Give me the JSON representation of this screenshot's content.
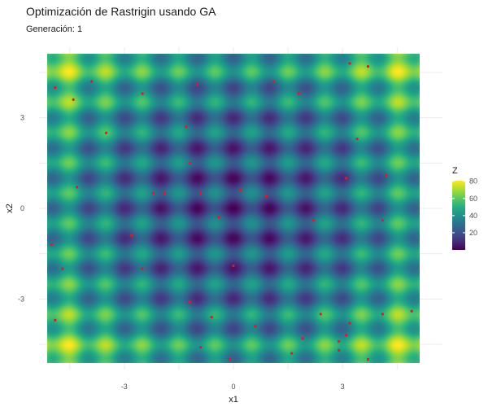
{
  "chart_data": {
    "type": "heatmap",
    "title": "Optimización de Rastrigin usando GA",
    "subtitle": "Generación: 1",
    "xlabel": "x1",
    "ylabel": "x2",
    "xlim": [
      -5.12,
      5.12
    ],
    "ylim": [
      -5.12,
      5.12
    ],
    "x_ticks": [
      -3,
      0,
      3
    ],
    "y_ticks": [
      -3,
      0,
      3
    ],
    "x_tick_labels": [
      "-3",
      "0",
      "3"
    ],
    "y_tick_labels": [
      "-3",
      "0",
      "3"
    ],
    "grid": true,
    "function": "Rastrigin",
    "colorscale": "viridis",
    "legend": {
      "title": "Z",
      "ticks": [
        20,
        40,
        60,
        80
      ],
      "tick_labels": [
        "20",
        "40",
        "60",
        "80"
      ],
      "range": [
        0,
        80.7
      ],
      "position": "right"
    },
    "points_color": "#e31a1c",
    "points": [
      {
        "x": -4.9,
        "y": 4.0
      },
      {
        "x": -3.9,
        "y": 4.2
      },
      {
        "x": -4.4,
        "y": 3.6
      },
      {
        "x": -2.5,
        "y": 3.8
      },
      {
        "x": -1.0,
        "y": 4.1
      },
      {
        "x": 1.1,
        "y": 4.2
      },
      {
        "x": 1.8,
        "y": 3.8
      },
      {
        "x": 3.2,
        "y": 4.8
      },
      {
        "x": 3.7,
        "y": 4.7
      },
      {
        "x": -3.5,
        "y": 2.5
      },
      {
        "x": -1.3,
        "y": 2.7
      },
      {
        "x": 3.4,
        "y": 2.3
      },
      {
        "x": -1.2,
        "y": 1.5
      },
      {
        "x": 3.1,
        "y": 1.0
      },
      {
        "x": 4.2,
        "y": 1.1
      },
      {
        "x": -4.3,
        "y": 0.7
      },
      {
        "x": -2.2,
        "y": 0.5
      },
      {
        "x": -1.9,
        "y": 0.5
      },
      {
        "x": -0.9,
        "y": 0.5
      },
      {
        "x": 0.2,
        "y": 0.6
      },
      {
        "x": 0.9,
        "y": 0.4
      },
      {
        "x": -0.4,
        "y": -0.3
      },
      {
        "x": 2.2,
        "y": -0.4
      },
      {
        "x": 4.1,
        "y": -0.4
      },
      {
        "x": -2.8,
        "y": -0.9
      },
      {
        "x": -5.0,
        "y": -1.2
      },
      {
        "x": -4.7,
        "y": -2.0
      },
      {
        "x": -2.5,
        "y": -2.0
      },
      {
        "x": 0.0,
        "y": -1.9
      },
      {
        "x": -1.2,
        "y": -3.1
      },
      {
        "x": -0.6,
        "y": -3.6
      },
      {
        "x": 0.6,
        "y": -3.9
      },
      {
        "x": 2.4,
        "y": -3.5
      },
      {
        "x": 3.2,
        "y": -3.8
      },
      {
        "x": 4.1,
        "y": -3.5
      },
      {
        "x": 4.9,
        "y": -3.4
      },
      {
        "x": -4.9,
        "y": -3.7
      },
      {
        "x": 1.9,
        "y": -4.3
      },
      {
        "x": 2.9,
        "y": -4.4
      },
      {
        "x": 3.1,
        "y": -4.2
      },
      {
        "x": -0.9,
        "y": -4.6
      },
      {
        "x": 1.6,
        "y": -4.8
      },
      {
        "x": 2.9,
        "y": -4.7
      },
      {
        "x": -0.1,
        "y": -5.0
      },
      {
        "x": 3.7,
        "y": -5.0
      }
    ]
  }
}
